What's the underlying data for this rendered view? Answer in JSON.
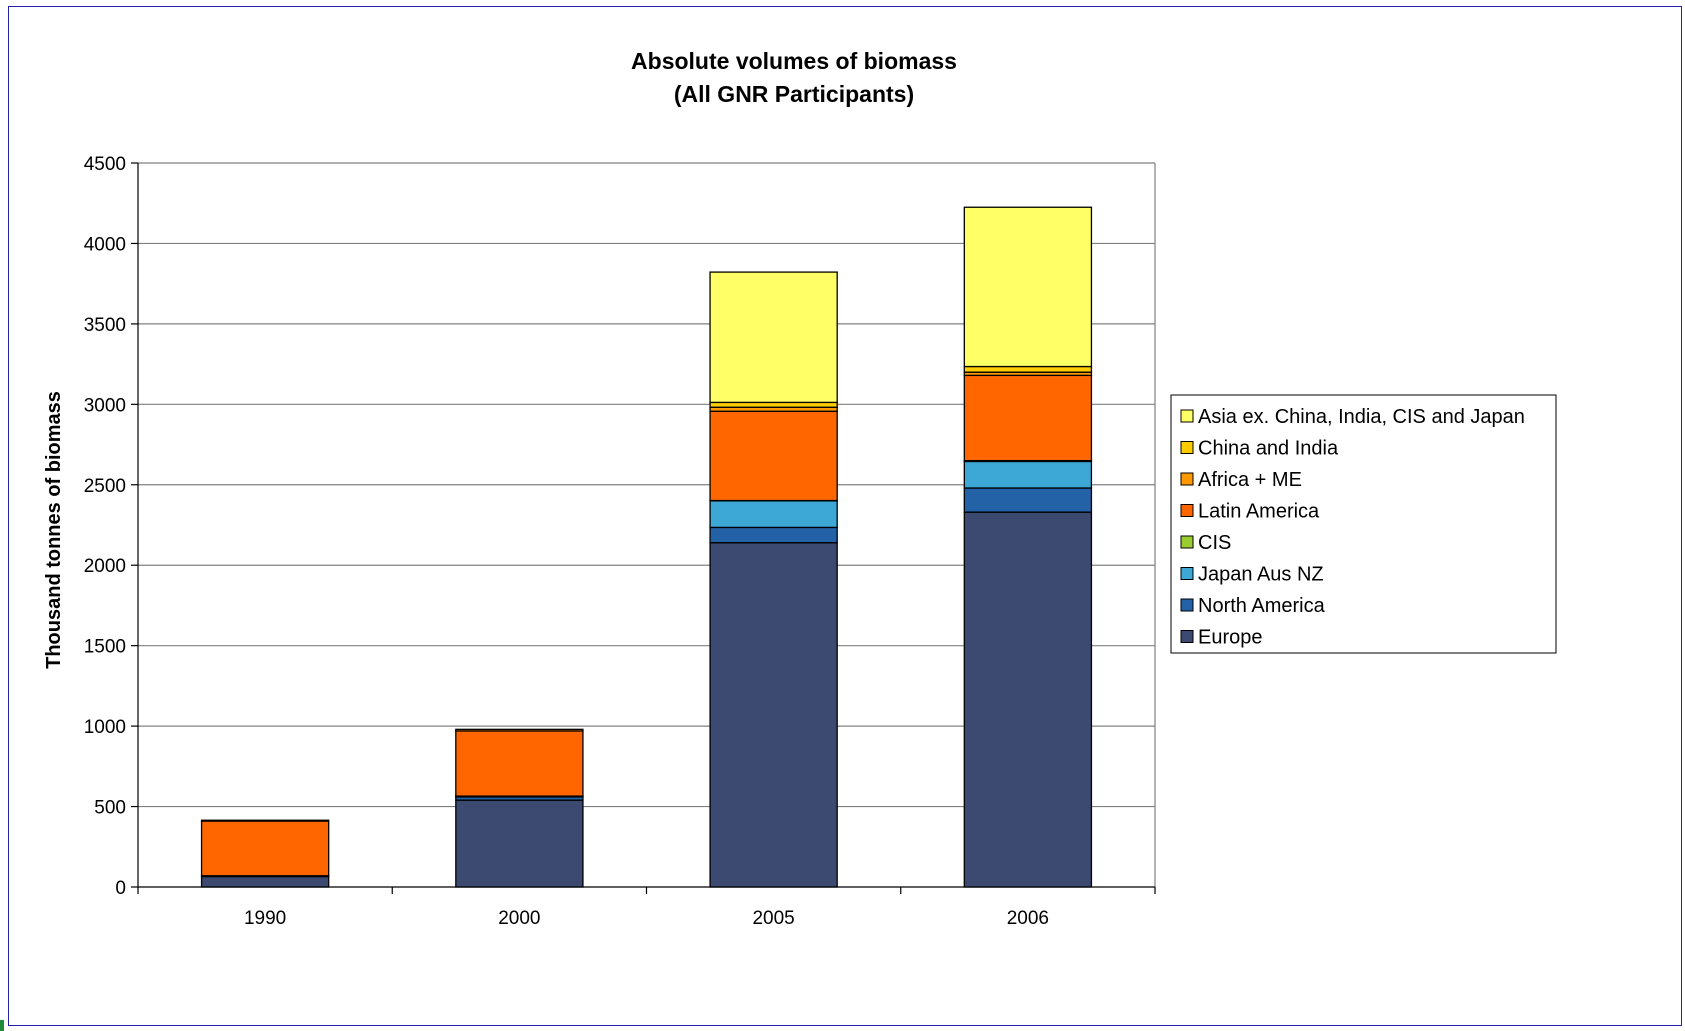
{
  "chart_data": {
    "type": "bar",
    "stacked": true,
    "title": "Absolute volumes of biomass",
    "subtitle": "(All GNR Participants)",
    "xlabel": "",
    "ylabel": "Thousand tonnes of biomass",
    "ylim": [
      0,
      4500
    ],
    "yticks": [
      0,
      500,
      1000,
      1500,
      2000,
      2500,
      3000,
      3500,
      4000,
      4500
    ],
    "grid": true,
    "legend_position": "right",
    "categories": [
      "1990",
      "2000",
      "2005",
      "2006"
    ],
    "series": [
      {
        "name": "Europe",
        "color": "#3c4a72",
        "values": [
          65,
          540,
          2140,
          2330
        ]
      },
      {
        "name": "North America",
        "color": "#2462a8",
        "values": [
          5,
          20,
          95,
          150
        ]
      },
      {
        "name": "Japan Aus NZ",
        "color": "#3da7d6",
        "values": [
          0,
          3,
          165,
          165
        ]
      },
      {
        "name": "CIS",
        "color": "#9acd32",
        "values": [
          0,
          2,
          2,
          5
        ]
      },
      {
        "name": "Latin America",
        "color": "#ff6600",
        "values": [
          340,
          405,
          555,
          530
        ]
      },
      {
        "name": "Africa + ME",
        "color": "#ff9900",
        "values": [
          5,
          10,
          25,
          20
        ]
      },
      {
        "name": "China and India",
        "color": "#ffcc00",
        "values": [
          0,
          0,
          30,
          35
        ]
      },
      {
        "name": "Asia ex. China, India, CIS and Japan",
        "color": "#ffff66",
        "values": [
          0,
          0,
          810,
          990
        ]
      }
    ]
  }
}
